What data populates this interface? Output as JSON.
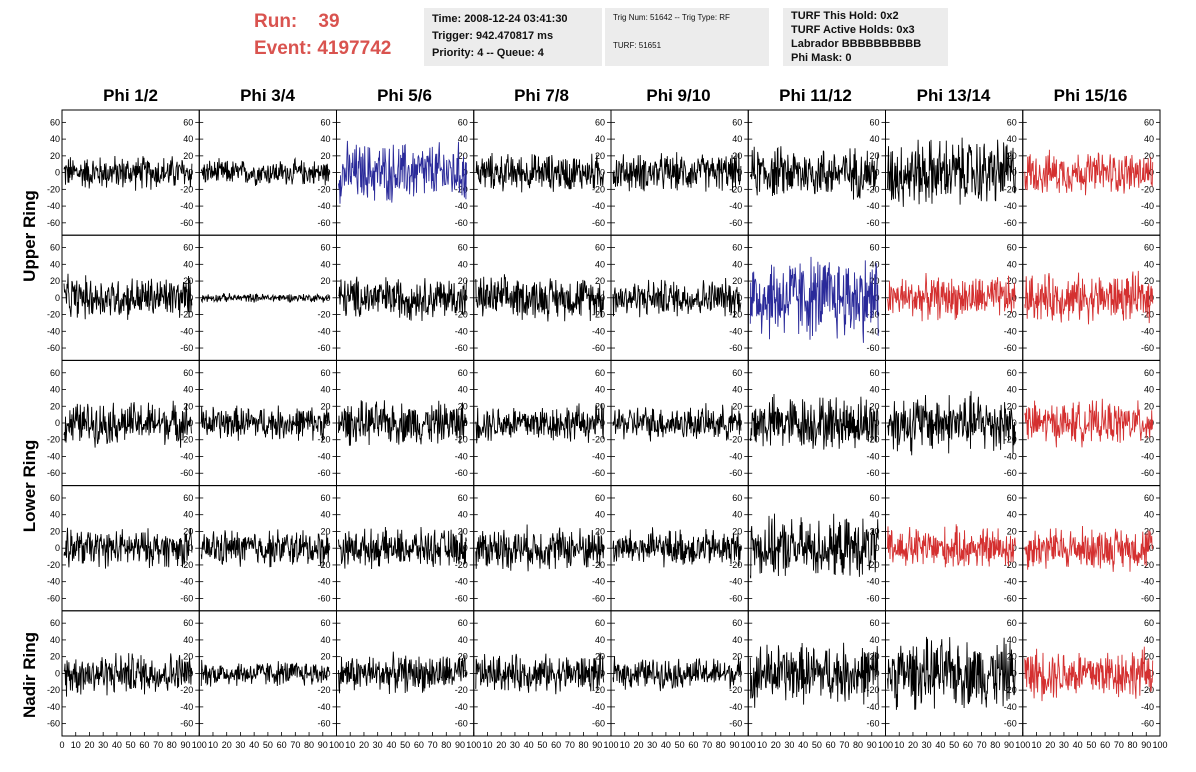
{
  "header": {
    "run_label": "Run:",
    "run_value": "39",
    "event_label": "Event:",
    "event_value": "4197742",
    "time": "Time: 2008-12-24 03:41:30",
    "trigger": "Trigger: 942.470817 ms",
    "priority": "Priority: 4 -- Queue: 4",
    "trig_num": "Trig Num: 51642 -- Trig Type: RF",
    "turf": "TURF: 51651",
    "turf_this_hold": "TURF This Hold: 0x2",
    "turf_active_holds": "TURF Active Holds: 0x3",
    "labrador": "Labrador BBBBBBBBBB",
    "phi_mask": "Phi Mask: 0"
  },
  "columns": [
    "Phi 1/2",
    "Phi 3/4",
    "Phi 5/6",
    "Phi 7/8",
    "Phi 9/10",
    "Phi 11/12",
    "Phi 13/14",
    "Phi 15/16"
  ],
  "ring_labels": [
    "Upper Ring",
    "Lower Ring",
    "Nadir Ring"
  ],
  "colors": {
    "normal": "#000000",
    "blue": "#2a2a9a",
    "red": "#d43030",
    "header_red": "#d9534f"
  },
  "chart_data": {
    "type": "line",
    "title": "",
    "ylim": [
      -70,
      70
    ],
    "xlim": [
      0,
      100
    ],
    "y_ticks": [
      -60,
      -40,
      -20,
      0,
      20,
      40,
      60
    ],
    "x_ticks": [
      0,
      10,
      20,
      30,
      40,
      50,
      60,
      70,
      80,
      90,
      100
    ],
    "grid": false,
    "panels": [
      {
        "row": 0,
        "col": 0,
        "color": "normal",
        "amplitude": 20
      },
      {
        "row": 0,
        "col": 1,
        "color": "normal",
        "amplitude": 15
      },
      {
        "row": 0,
        "col": 2,
        "color": "blue",
        "amplitude": 35
      },
      {
        "row": 0,
        "col": 3,
        "color": "normal",
        "amplitude": 22
      },
      {
        "row": 0,
        "col": 4,
        "color": "normal",
        "amplitude": 22
      },
      {
        "row": 0,
        "col": 5,
        "color": "normal",
        "amplitude": 30
      },
      {
        "row": 0,
        "col": 6,
        "color": "normal",
        "amplitude": 40
      },
      {
        "row": 0,
        "col": 7,
        "color": "red",
        "amplitude": 25
      },
      {
        "row": 1,
        "col": 0,
        "color": "normal",
        "amplitude": 25
      },
      {
        "row": 1,
        "col": 1,
        "color": "normal",
        "amplitude": 5
      },
      {
        "row": 1,
        "col": 2,
        "color": "normal",
        "amplitude": 25
      },
      {
        "row": 1,
        "col": 3,
        "color": "normal",
        "amplitude": 25
      },
      {
        "row": 1,
        "col": 4,
        "color": "normal",
        "amplitude": 22
      },
      {
        "row": 1,
        "col": 5,
        "color": "blue",
        "amplitude": 50
      },
      {
        "row": 1,
        "col": 6,
        "color": "red",
        "amplitude": 25
      },
      {
        "row": 1,
        "col": 7,
        "color": "red",
        "amplitude": 28
      },
      {
        "row": 2,
        "col": 0,
        "color": "normal",
        "amplitude": 25
      },
      {
        "row": 2,
        "col": 1,
        "color": "normal",
        "amplitude": 20
      },
      {
        "row": 2,
        "col": 2,
        "color": "normal",
        "amplitude": 25
      },
      {
        "row": 2,
        "col": 3,
        "color": "normal",
        "amplitude": 22
      },
      {
        "row": 2,
        "col": 4,
        "color": "normal",
        "amplitude": 20
      },
      {
        "row": 2,
        "col": 5,
        "color": "normal",
        "amplitude": 32
      },
      {
        "row": 2,
        "col": 6,
        "color": "normal",
        "amplitude": 35
      },
      {
        "row": 2,
        "col": 7,
        "color": "red",
        "amplitude": 25
      },
      {
        "row": 3,
        "col": 0,
        "color": "normal",
        "amplitude": 22
      },
      {
        "row": 3,
        "col": 1,
        "color": "normal",
        "amplitude": 22
      },
      {
        "row": 3,
        "col": 2,
        "color": "normal",
        "amplitude": 22
      },
      {
        "row": 3,
        "col": 3,
        "color": "normal",
        "amplitude": 25
      },
      {
        "row": 3,
        "col": 4,
        "color": "normal",
        "amplitude": 22
      },
      {
        "row": 3,
        "col": 5,
        "color": "normal",
        "amplitude": 35
      },
      {
        "row": 3,
        "col": 6,
        "color": "red",
        "amplitude": 25
      },
      {
        "row": 3,
        "col": 7,
        "color": "red",
        "amplitude": 25
      },
      {
        "row": 4,
        "col": 0,
        "color": "normal",
        "amplitude": 25
      },
      {
        "row": 4,
        "col": 1,
        "color": "normal",
        "amplitude": 15
      },
      {
        "row": 4,
        "col": 2,
        "color": "normal",
        "amplitude": 22
      },
      {
        "row": 4,
        "col": 3,
        "color": "normal",
        "amplitude": 22
      },
      {
        "row": 4,
        "col": 4,
        "color": "normal",
        "amplitude": 18
      },
      {
        "row": 4,
        "col": 5,
        "color": "normal",
        "amplitude": 35
      },
      {
        "row": 4,
        "col": 6,
        "color": "normal",
        "amplitude": 40
      },
      {
        "row": 4,
        "col": 7,
        "color": "red",
        "amplitude": 30
      }
    ]
  }
}
